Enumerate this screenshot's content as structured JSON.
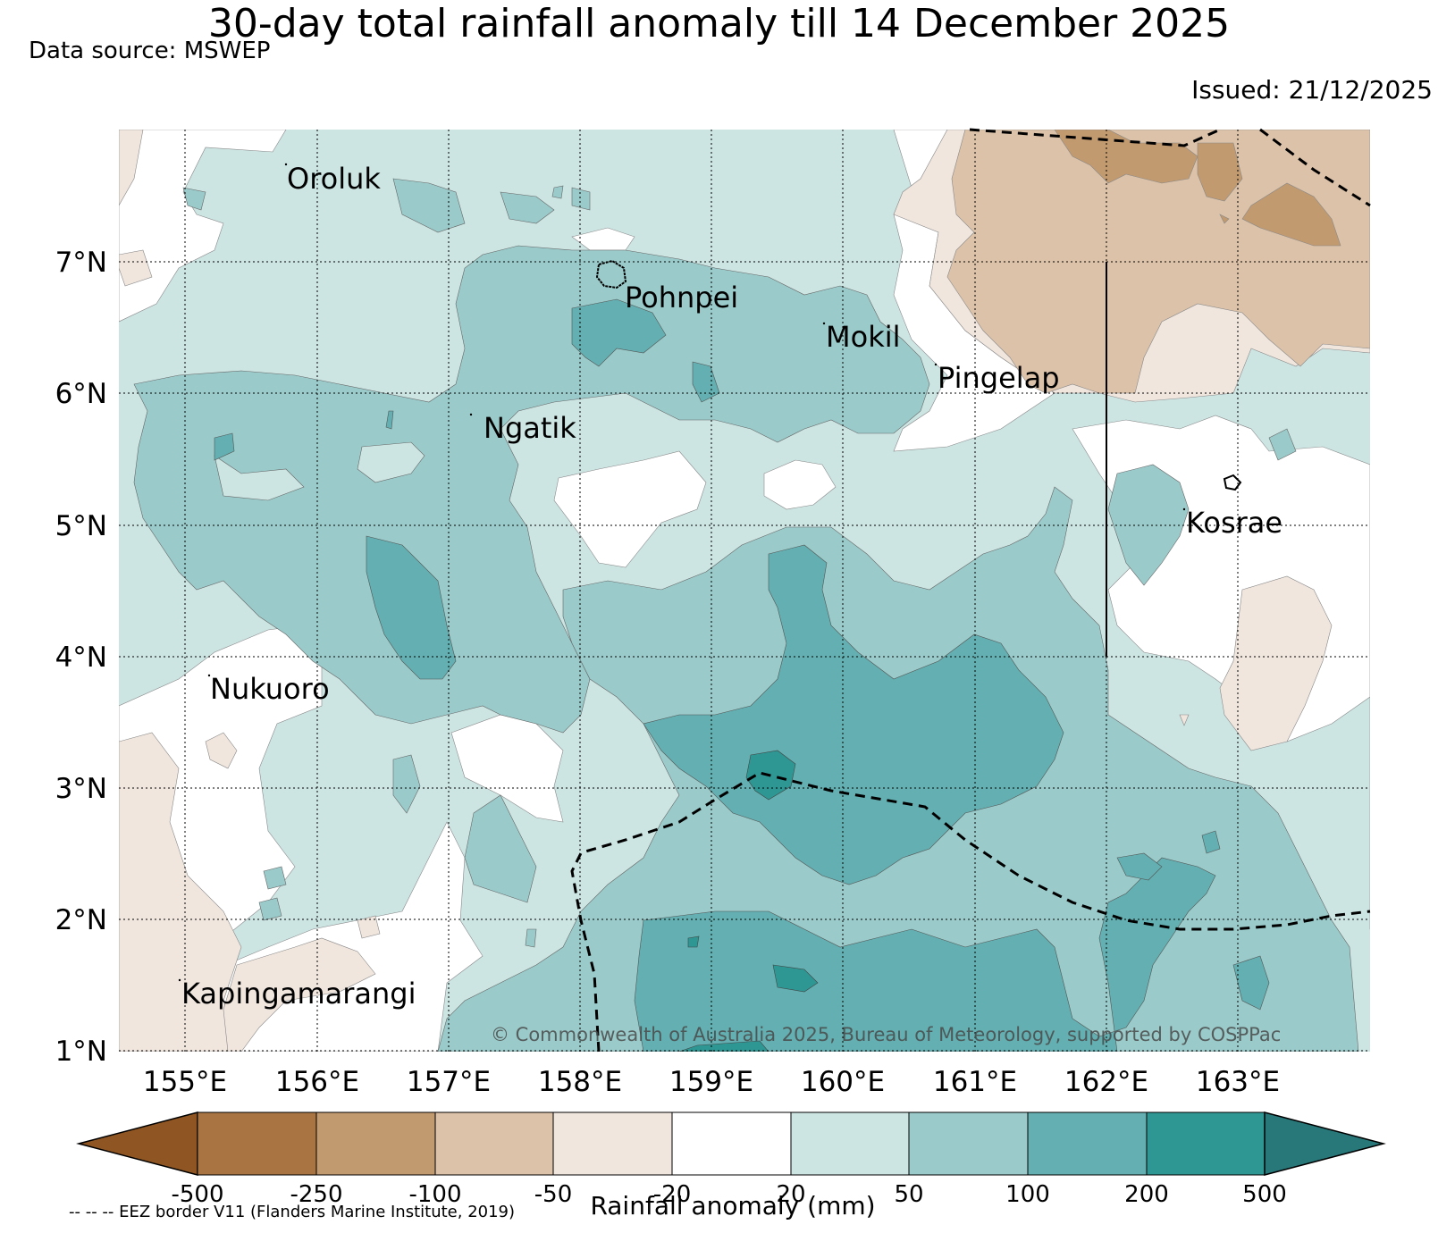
{
  "title": "30-day total rainfall anomaly till 14 December 2025",
  "source": "Data source: MSWEP",
  "issued": "Issued: 21/12/2025",
  "copyright": "© Commonwealth of Australia 2025, Bureau of Meteorology, supported by COSPPac",
  "footnote": "-- -- -- EEZ border V11 (Flanders Marine Institute, 2019)",
  "map": {
    "lat_ticks": [
      "7°N",
      "6°N",
      "5°N",
      "4°N",
      "3°N",
      "2°N",
      "1°N"
    ],
    "lon_ticks": [
      "155°E",
      "156°E",
      "157°E",
      "158°E",
      "159°E",
      "160°E",
      "161°E",
      "162°E",
      "163°E"
    ],
    "places": [
      {
        "name": "Oroluk",
        "lat": 7.6,
        "lon": 155.6
      },
      {
        "name": "Pohnpei",
        "lat": 6.75,
        "lon": 158.3
      },
      {
        "name": "Mokil",
        "lat": 6.4,
        "lon": 159.8
      },
      {
        "name": "Pingelap",
        "lat": 6.1,
        "lon": 160.7
      },
      {
        "name": "Ngatik",
        "lat": 5.7,
        "lon": 157.3
      },
      {
        "name": "Kosrae",
        "lat": 5.0,
        "lon": 162.9
      },
      {
        "name": "Nukuoro",
        "lat": 3.8,
        "lon": 154.9
      },
      {
        "name": "Kapingamarangi",
        "lat": 1.4,
        "lon": 154.8
      }
    ]
  },
  "colorbar": {
    "title": "Rainfall anomaly (mm)",
    "ticks": [
      "-500",
      "-250",
      "-100",
      "-50",
      "-20",
      "20",
      "50",
      "100",
      "200",
      "500"
    ],
    "colors": {
      "lt_-500": "#8f5623",
      "-500_-250": "#a97442",
      "-250_-100": "#c29a70",
      "-100_-50": "#dbc2a9",
      "-50_-20": "#f0e6de",
      "-20_20": "#ffffff",
      "20_50": "#cce5e3",
      "50_100": "#9acbca",
      "100_200": "#63afb1",
      "200_500": "#2e9794",
      "gt_500": "#28787a"
    }
  }
}
